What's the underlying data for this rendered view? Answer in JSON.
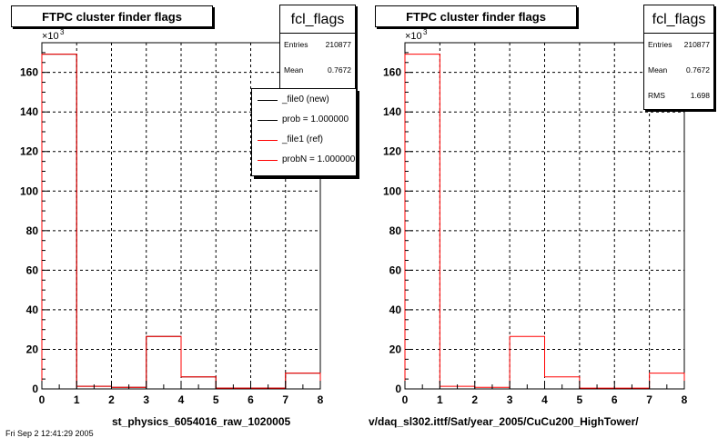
{
  "chart_data": [
    {
      "type": "bar",
      "title": "FTPC cluster finder flags",
      "xlabel": "st_physics_6054016_raw_1020005",
      "ylabel": "",
      "y_multiplier": "×10",
      "y_multiplier_exp": "3",
      "xlim": [
        0,
        8
      ],
      "ylim": [
        0,
        175
      ],
      "x_ticks": [
        0,
        1,
        2,
        3,
        4,
        5,
        6,
        7,
        8
      ],
      "y_ticks": [
        0,
        20,
        40,
        60,
        80,
        100,
        120,
        140,
        160
      ],
      "grid": true,
      "bin_edges": [
        0,
        1,
        2,
        3,
        4,
        5,
        6,
        7,
        8
      ],
      "series": [
        {
          "name": "_file0 (new)",
          "color": "#000000",
          "values": [
            169.2,
            1.3,
            0.8,
            26.5,
            6.1,
            0.4,
            0.4,
            8.0
          ]
        },
        {
          "name": "_file1 (ref)",
          "color": "#ff0000",
          "values": [
            169.2,
            1.3,
            0.8,
            26.5,
            6.1,
            0.4,
            0.4,
            8.0
          ]
        }
      ],
      "stats": {
        "name": "fcl_flags",
        "rows": [
          {
            "k": "Entries",
            "v": "210877"
          },
          {
            "k": "Mean",
            "v": "0.7672"
          }
        ]
      },
      "legend": {
        "placement": "top-right",
        "entries": [
          {
            "label": "_file0 (new)",
            "color": "#000000"
          },
          {
            "label": "prob = 1.000000",
            "color": "#000000"
          },
          {
            "label": "_file1 (ref)",
            "color": "#ff0000"
          },
          {
            "label": "probN = 1.000000",
            "color": "#ff0000"
          }
        ]
      }
    },
    {
      "type": "bar",
      "title": "FTPC cluster finder flags",
      "xlabel": "v/daq_sl302.ittf/Sat/year_2005/CuCu200_HighTower/",
      "ylabel": "",
      "y_multiplier": "×10",
      "y_multiplier_exp": "3",
      "xlim": [
        0,
        8
      ],
      "ylim": [
        0,
        175
      ],
      "x_ticks": [
        0,
        1,
        2,
        3,
        4,
        5,
        6,
        7,
        8
      ],
      "y_ticks": [
        0,
        20,
        40,
        60,
        80,
        100,
        120,
        140,
        160
      ],
      "grid": true,
      "bin_edges": [
        0,
        1,
        2,
        3,
        4,
        5,
        6,
        7,
        8
      ],
      "series": [
        {
          "color": "#ff0000",
          "values": [
            169.2,
            1.3,
            0.8,
            26.5,
            6.1,
            0.4,
            0.4,
            8.0
          ]
        }
      ],
      "stats": {
        "name": "fcl_flags",
        "rows": [
          {
            "k": "Entries",
            "v": "210877"
          },
          {
            "k": "Mean",
            "v": "0.7672"
          },
          {
            "k": "RMS",
            "v": "1.698"
          }
        ]
      }
    }
  ],
  "footer_text": "Fri Sep 2 12:41:29 2005"
}
